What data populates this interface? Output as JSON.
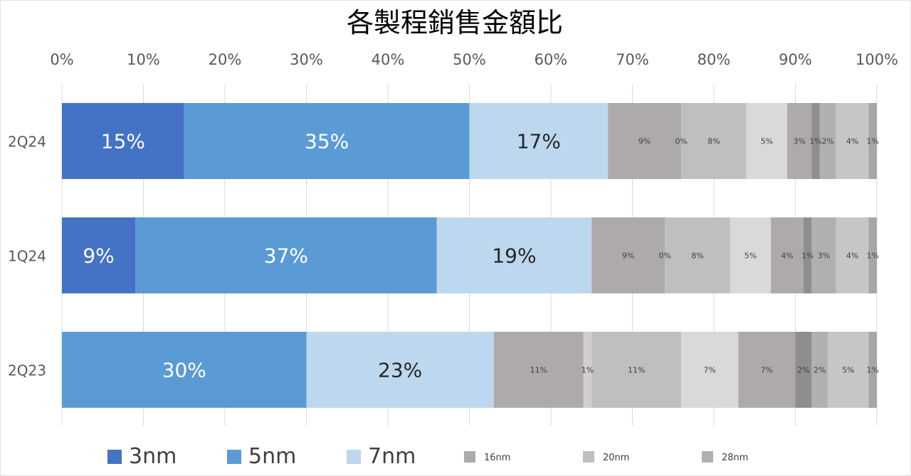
{
  "chart_data": {
    "type": "bar",
    "orientation": "horizontal",
    "stacked": "percent",
    "title": "各製程銷售金額比",
    "xlabel": "",
    "ylabel": "",
    "xlim": [
      0,
      100
    ],
    "x_ticks": [
      "0%",
      "10%",
      "20%",
      "30%",
      "40%",
      "50%",
      "60%",
      "70%",
      "80%",
      "90%",
      "100%"
    ],
    "categories": [
      "2Q24",
      "1Q24",
      "2Q23"
    ],
    "grid": "vertical",
    "legend_position": "bottom",
    "series": [
      {
        "name": "3nm",
        "color": "#4472c4",
        "values": [
          15,
          9,
          0
        ],
        "labels": [
          "15%",
          "9%",
          ""
        ],
        "label_color": "#ffffff",
        "label_size": "large",
        "in_legend": true
      },
      {
        "name": "5nm",
        "color": "#5b9bd5",
        "values": [
          35,
          37,
          30
        ],
        "labels": [
          "35%",
          "37%",
          "30%"
        ],
        "label_color": "#ffffff",
        "label_size": "large",
        "in_legend": true
      },
      {
        "name": "7nm",
        "color": "#bdd7ee",
        "values": [
          17,
          19,
          23
        ],
        "labels": [
          "17%",
          "19%",
          "23%"
        ],
        "label_color": "#262626",
        "label_size": "large",
        "in_legend": true
      },
      {
        "name": "16nm",
        "color": "#aeaaaa",
        "values": [
          9,
          9,
          11
        ],
        "labels": [
          "9%",
          "9%",
          "11%"
        ],
        "label_color": "#404040",
        "label_size": "small",
        "in_legend": true
      },
      {
        "name": "",
        "color": "#d0cece",
        "values": [
          0,
          0,
          1
        ],
        "labels": [
          "0%",
          "0%",
          "1%"
        ],
        "label_color": "#404040",
        "label_size": "small",
        "in_legend": false
      },
      {
        "name": "20nm",
        "color": "#bfbfbf",
        "values": [
          8,
          8,
          11
        ],
        "labels": [
          "8%",
          "8%",
          "11%"
        ],
        "label_color": "#404040",
        "label_size": "small",
        "in_legend": true
      },
      {
        "name": "",
        "color": "#d9d9d9",
        "values": [
          5,
          5,
          7
        ],
        "labels": [
          "5%",
          "5%",
          "7%"
        ],
        "label_color": "#404040",
        "label_size": "small",
        "in_legend": false
      },
      {
        "name": "",
        "color": "#aeaaaa",
        "values": [
          3,
          4,
          7
        ],
        "labels": [
          "3%",
          "4%",
          "7%"
        ],
        "label_color": "#404040",
        "label_size": "small",
        "in_legend": false
      },
      {
        "name": "",
        "color": "#8e8e8e",
        "values": [
          1,
          1,
          2
        ],
        "labels": [
          "1%",
          "1%",
          "2%"
        ],
        "label_color": "#404040",
        "label_size": "small",
        "in_legend": false
      },
      {
        "name": "28nm",
        "color": "#b0b0b0",
        "values": [
          2,
          3,
          2
        ],
        "labels": [
          "2%",
          "3%",
          "2%"
        ],
        "label_color": "#404040",
        "label_size": "small",
        "in_legend": true
      },
      {
        "name": "",
        "color": "#c6c6c6",
        "values": [
          4,
          4,
          5
        ],
        "labels": [
          "4%",
          "4%",
          "5%"
        ],
        "label_color": "#404040",
        "label_size": "small",
        "in_legend": false
      },
      {
        "name": "",
        "color": "#a6a6a6",
        "values": [
          1,
          1,
          1
        ],
        "labels": [
          "1%",
          "1%",
          "1%"
        ],
        "label_color": "#404040",
        "label_size": "small",
        "in_legend": false
      }
    ]
  }
}
